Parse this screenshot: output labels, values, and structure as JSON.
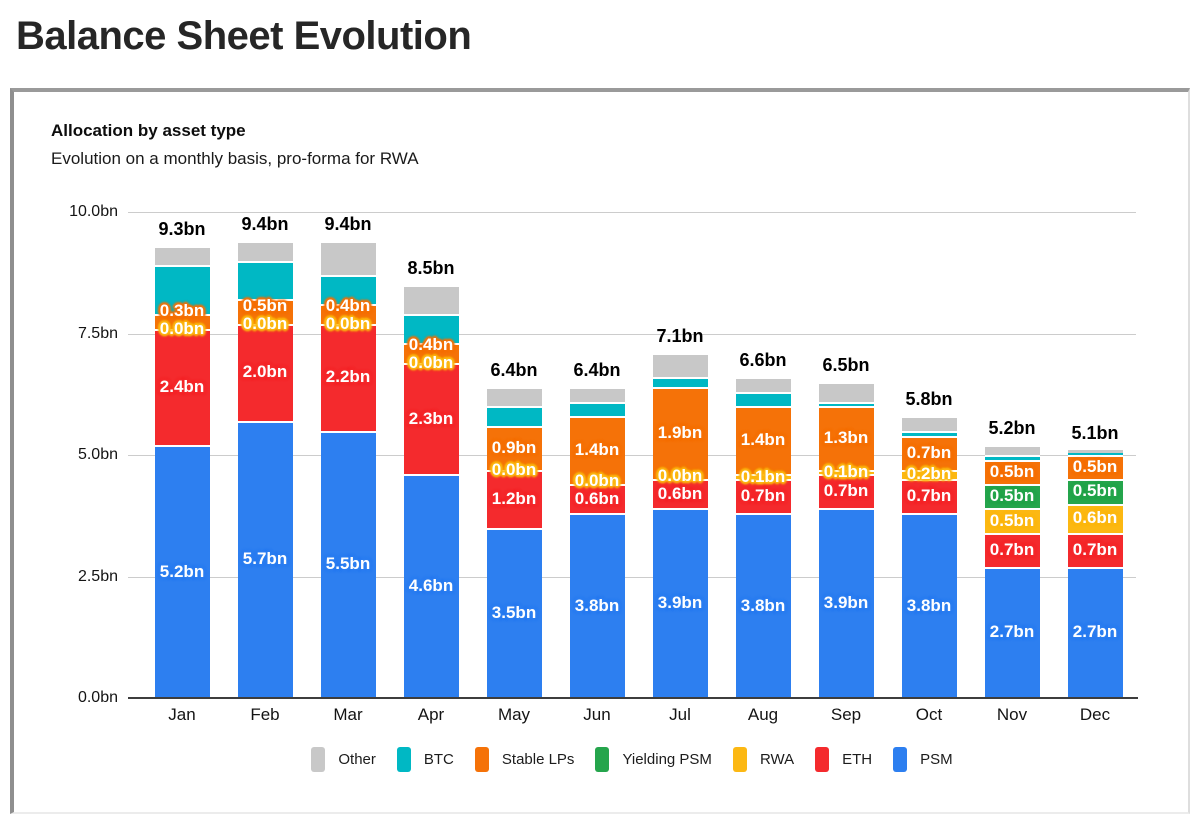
{
  "page_title": "Balance Sheet Evolution",
  "card": {
    "heading": "Allocation by asset type",
    "subtitle": "Evolution on a monthly basis, pro-forma for RWA"
  },
  "chart_data": {
    "type": "bar",
    "stacked": true,
    "title": "Allocation by asset type",
    "subtitle": "Evolution on a monthly basis, pro-forma for RWA",
    "unit": "bn",
    "ylim": [
      0,
      10
    ],
    "grid": true,
    "legend_position": "bottom",
    "y_ticks": [
      {
        "label": "0.0bn",
        "value": 0
      },
      {
        "label": "2.5bn",
        "value": 2.5
      },
      {
        "label": "5.0bn",
        "value": 5
      },
      {
        "label": "7.5bn",
        "value": 7.5
      },
      {
        "label": "10.0bn",
        "value": 10
      }
    ],
    "categories": [
      "Jan",
      "Feb",
      "Mar",
      "Apr",
      "May",
      "Jun",
      "Jul",
      "Aug",
      "Sep",
      "Oct",
      "Nov",
      "Dec"
    ],
    "totals": [
      9.3,
      9.4,
      9.4,
      8.5,
      6.4,
      6.4,
      7.1,
      6.6,
      6.5,
      5.8,
      5.2,
      5.1
    ],
    "total_labels": [
      "9.3bn",
      "9.4bn",
      "9.4bn",
      "8.5bn",
      "6.4bn",
      "6.4bn",
      "7.1bn",
      "6.6bn",
      "6.5bn",
      "5.8bn",
      "5.2bn",
      "5.1bn"
    ],
    "stack_order": "bottom-to-top",
    "series": [
      {
        "id": "psm",
        "name": "PSM",
        "color": "#2d7ff0",
        "values": [
          5.2,
          5.7,
          5.5,
          4.6,
          3.5,
          3.8,
          3.9,
          3.8,
          3.9,
          3.8,
          2.7,
          2.7
        ],
        "labels": [
          "5.2bn",
          "5.7bn",
          "5.5bn",
          "4.6bn",
          "3.5bn",
          "3.8bn",
          "3.9bn",
          "3.8bn",
          "3.9bn",
          "3.8bn",
          "2.7bn",
          "2.7bn"
        ]
      },
      {
        "id": "eth",
        "name": "ETH",
        "color": "#f42a2d",
        "values": [
          2.4,
          2.0,
          2.2,
          2.3,
          1.2,
          0.6,
          0.6,
          0.7,
          0.7,
          0.7,
          0.7,
          0.7
        ],
        "labels": [
          "2.4bn",
          "2.0bn",
          "2.2bn",
          "2.3bn",
          "1.2bn",
          "0.6bn",
          "0.6bn",
          "0.7bn",
          "0.7bn",
          "0.7bn",
          "0.7bn",
          "0.7bn"
        ]
      },
      {
        "id": "rwa",
        "name": "RWA",
        "color": "#fcb813",
        "values": [
          0.0,
          0.0,
          0.0,
          0.0,
          0.0,
          0.0,
          0.0,
          0.1,
          0.1,
          0.2,
          0.5,
          0.6
        ],
        "labels": [
          "0.0bn",
          "0.0bn",
          "0.0bn",
          "0.0bn",
          "0.0bn",
          "0.0bn",
          "0.0bn",
          "0.1bn",
          "0.1bn",
          "0.2bn",
          "0.5bn",
          "0.6bn"
        ]
      },
      {
        "id": "yielding_psm",
        "name": "Yielding PSM",
        "color": "#25a54c",
        "values": [
          0,
          0,
          0,
          0,
          0,
          0,
          0,
          0,
          0,
          0,
          0.5,
          0.5
        ],
        "labels": [
          null,
          null,
          null,
          null,
          null,
          null,
          null,
          null,
          null,
          null,
          "0.5bn",
          "0.5bn"
        ]
      },
      {
        "id": "stable_lps",
        "name": "Stable LPs",
        "color": "#f57208",
        "values": [
          0.3,
          0.5,
          0.4,
          0.4,
          0.9,
          1.4,
          1.9,
          1.4,
          1.3,
          0.7,
          0.5,
          0.5
        ],
        "labels": [
          "0.3bn",
          "0.5bn",
          "0.4bn",
          "0.4bn",
          "0.9bn",
          "1.4bn",
          "1.9bn",
          "1.4bn",
          "1.3bn",
          "0.7bn",
          "0.5bn",
          "0.5bn"
        ]
      },
      {
        "id": "btc",
        "name": "BTC",
        "color": "#00b8c4",
        "values": [
          1.0,
          0.8,
          0.6,
          0.6,
          0.4,
          0.3,
          0.2,
          0.3,
          0.1,
          0.1,
          0.1,
          0.05
        ],
        "labels": null
      },
      {
        "id": "other",
        "name": "Other",
        "color": "#c8c8c8",
        "values": [
          0.4,
          0.4,
          0.7,
          0.6,
          0.4,
          0.3,
          0.5,
          0.3,
          0.4,
          0.3,
          0.2,
          0.05
        ],
        "labels": null
      }
    ],
    "legend_order": [
      "other",
      "btc",
      "stable_lps",
      "yielding_psm",
      "rwa",
      "eth",
      "psm"
    ],
    "style_colors": {
      "grid": "#cccccc",
      "axis": "#3d3d3d",
      "text": "#111111"
    }
  }
}
